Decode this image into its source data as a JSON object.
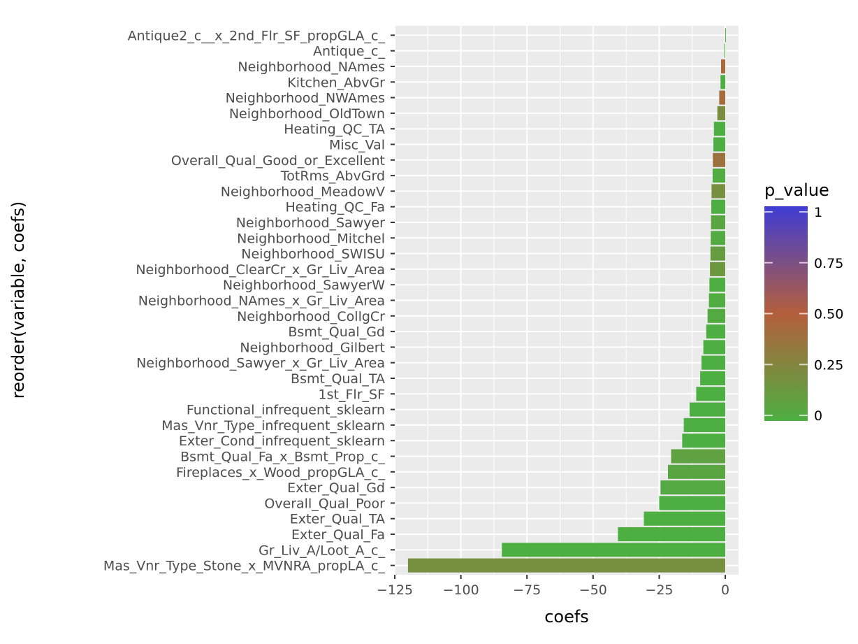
{
  "chart_data": {
    "type": "bar",
    "orientation": "horizontal",
    "xlabel": "coefs",
    "ylabel": "reorder(variable, coefs)",
    "xlim": [
      -125,
      5
    ],
    "x_ticks": [
      -125,
      -100,
      -75,
      -50,
      -25,
      0
    ],
    "x_tick_labels": [
      "−125",
      "−100",
      "−75",
      "−50",
      "−25",
      "0"
    ],
    "categories": [
      "Antique2_c__x_2nd_Flr_SF_propGLA_c_",
      "Antique_c_",
      "Neighborhood_NAmes",
      "Kitchen_AbvGr",
      "Neighborhood_NWAmes",
      "Neighborhood_OldTown",
      "Heating_QC_TA",
      "Misc_Val",
      "Overall_Qual_Good_or_Excellent",
      "TotRms_AbvGrd",
      "Neighborhood_MeadowV",
      "Heating_QC_Fa",
      "Neighborhood_Sawyer",
      "Neighborhood_Mitchel",
      "Neighborhood_SWISU",
      "Neighborhood_ClearCr_x_Gr_Liv_Area",
      "Neighborhood_SawyerW",
      "Neighborhood_NAmes_x_Gr_Liv_Area",
      "Neighborhood_CollgCr",
      "Bsmt_Qual_Gd",
      "Neighborhood_Gilbert",
      "Neighborhood_Sawyer_x_Gr_Liv_Area",
      "Bsmt_Qual_TA",
      "1st_Flr_SF",
      "Functional_infrequent_sklearn",
      "Mas_Vnr_Type_infrequent_sklearn",
      "Exter_Cond_infrequent_sklearn",
      "Bsmt_Qual_Fa_x_Bsmt_Prop_c_",
      "Fireplaces_x_Wood_propGLA_c_",
      "Exter_Qual_Gd",
      "Overall_Qual_Poor",
      "Exter_Qual_TA",
      "Exter_Qual_Fa",
      "Gr_Liv_A/Loot_A_c_",
      "Mas_Vnr_Type_Stone_x_MVNRA_propLA_c_"
    ],
    "values": [
      0.0,
      -0.3,
      -1.6,
      -1.8,
      -2.3,
      -3.0,
      -4.3,
      -4.5,
      -4.7,
      -4.8,
      -5.2,
      -5.3,
      -5.4,
      -5.5,
      -5.6,
      -5.8,
      -6.0,
      -6.2,
      -6.7,
      -7.2,
      -8.3,
      -9.0,
      -9.5,
      -11.0,
      -13.5,
      -15.7,
      -16.3,
      -20.5,
      -21.7,
      -24.5,
      -25.0,
      -30.8,
      -40.6,
      -84.5,
      -120.0
    ],
    "p_values": [
      0.0,
      0.0,
      0.44,
      0.0,
      0.42,
      0.22,
      0.0,
      0.0,
      0.38,
      0.02,
      0.2,
      0.0,
      0.06,
      0.03,
      0.12,
      0.15,
      0.0,
      0.02,
      0.03,
      0.0,
      0.0,
      0.0,
      0.0,
      0.0,
      0.0,
      0.0,
      0.0,
      0.09,
      0.06,
      0.04,
      0.0,
      0.0,
      0.0,
      0.0,
      0.2
    ],
    "grid": true,
    "panel_background": "#ebebeb",
    "legend": {
      "title": "p_value",
      "placement": "right",
      "ticks": [
        1,
        0.75,
        0.5,
        0.25,
        0
      ],
      "tick_labels": [
        "1",
        "0.75",
        "0.50",
        "0.25",
        "0"
      ],
      "colors": {
        "low": "#4daf42",
        "mid": "#b45f3c",
        "high": "#3f3dd4"
      }
    }
  }
}
